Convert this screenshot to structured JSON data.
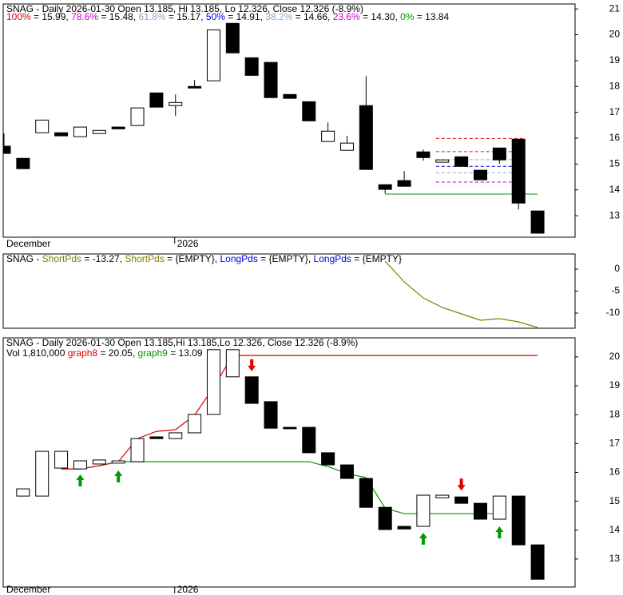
{
  "chart_data": [
    {
      "type": "candlestick",
      "title": "SNAG - Daily 2026-01-30 Open 13.185, Hi 13.185, Lo 12.326, Close 12.326 (-8.9%)",
      "fib_levels": [
        {
          "label": "100%",
          "text": " = 15.99, ",
          "value": 15.99,
          "color": "#e00000"
        },
        {
          "label": "78.6%",
          "text": " = 15.48, ",
          "value": 15.48,
          "color": "#cc00cc"
        },
        {
          "label": "61.8%",
          "text": " = 15.17, ",
          "value": 15.17,
          "color": "#8fa8c8"
        },
        {
          "label": "50%",
          "text": " = 14.91, ",
          "value": 14.91,
          "color": "#0000e0"
        },
        {
          "label": "38.2%",
          "text": " = 14.66, ",
          "value": 14.66,
          "color": "#8fa8c8"
        },
        {
          "label": "23.6%",
          "text": " = 14.30, ",
          "value": 14.3,
          "color": "#cc00cc"
        },
        {
          "label": "0%",
          "text": " = 13.84",
          "value": 13.84,
          "color": "#009900"
        }
      ],
      "categories": [
        "December",
        null,
        null,
        null,
        null,
        null,
        null,
        null,
        null,
        "2026",
        null,
        null,
        null,
        null,
        null,
        null,
        null,
        null,
        null,
        null,
        null,
        null,
        null,
        null,
        null,
        null,
        null,
        null,
        null
      ],
      "open": [
        15.69,
        15.22,
        16.21,
        16.21,
        16.06,
        16.18,
        16.43,
        16.49,
        17.75,
        17.26,
        18.0,
        18.22,
        20.44,
        19.11,
        18.93,
        17.69,
        17.41,
        15.87,
        15.53,
        17.26,
        14.2,
        14.36,
        15.47,
        15.07,
        15.28,
        14.76,
        15.62,
        15.96,
        13.185
      ],
      "high": [
        16.18,
        15.22,
        16.7,
        16.21,
        16.43,
        16.3,
        16.43,
        17.17,
        17.75,
        17.69,
        18.25,
        20.19,
        20.44,
        19.11,
        18.93,
        17.69,
        17.41,
        16.61,
        16.09,
        18.4,
        14.2,
        14.73,
        15.56,
        15.16,
        15.28,
        14.76,
        15.62,
        15.96,
        13.185
      ],
      "low": [
        15.41,
        14.82,
        16.21,
        16.09,
        16.06,
        16.18,
        16.36,
        16.49,
        17.2,
        16.86,
        17.94,
        18.22,
        19.3,
        18.43,
        17.57,
        17.54,
        16.67,
        15.87,
        15.53,
        14.79,
        13.86,
        14.14,
        15.13,
        15.07,
        14.91,
        14.39,
        15.01,
        13.25,
        12.326
      ],
      "close": [
        15.41,
        14.82,
        16.7,
        16.09,
        16.43,
        16.3,
        16.36,
        17.17,
        17.2,
        17.38,
        17.94,
        20.19,
        19.3,
        18.43,
        17.57,
        17.54,
        16.67,
        16.27,
        15.81,
        14.79,
        14.02,
        14.14,
        15.25,
        15.16,
        14.91,
        14.39,
        15.16,
        13.49,
        12.326
      ],
      "ylim": [
        12.17,
        21.19
      ],
      "yticks": [
        13,
        14,
        15,
        16,
        17,
        18,
        19,
        20,
        21
      ]
    },
    {
      "type": "line",
      "title": "SNAG - ",
      "legend": [
        {
          "label": "ShortPds",
          "text": " = -13.27, ",
          "color": "#808000"
        },
        {
          "label": "ShortPds",
          "text": " = {EMPTY}, ",
          "color": "#808000"
        },
        {
          "label": "LongPds",
          "text": " = {EMPTY}, ",
          "color": "#0000e0"
        },
        {
          "label": "LongPds",
          "text": " = {EMPTY}",
          "color": "#0000e0"
        }
      ],
      "categories": [
        null,
        null,
        null,
        null,
        null,
        null,
        null,
        null,
        null,
        null,
        null,
        null,
        null,
        null,
        null,
        null,
        null,
        null,
        null,
        null,
        null,
        null,
        null,
        null,
        null,
        null,
        null,
        null,
        null
      ],
      "series": [
        {
          "color": "#808000",
          "values": [
            null,
            null,
            null,
            null,
            null,
            null,
            null,
            null,
            null,
            null,
            null,
            null,
            null,
            null,
            null,
            null,
            null,
            null,
            null,
            null,
            1.82,
            -2.91,
            -6.55,
            -8.73,
            -10.18,
            -11.64,
            -11.27,
            -12.0,
            -13.27
          ]
        }
      ],
      "ylim": [
        -13.45,
        3.45
      ],
      "yticks": [
        0,
        -5,
        -10
      ]
    },
    {
      "type": "candlestick",
      "title": "SNAG - Daily 2026-01-30 Open 13.185,Hi 13.185,Lo 12.326, Close 12.326 (-8.9%)",
      "volume_label": "Vol 1,810,000 ",
      "categories": [
        "December",
        null,
        null,
        null,
        null,
        null,
        null,
        null,
        null,
        "2026",
        null,
        null,
        null,
        null,
        null,
        null,
        null,
        null,
        null,
        null,
        null,
        null,
        null,
        null,
        null,
        null,
        null,
        null,
        null
      ],
      "open": [
        null,
        15.18,
        15.18,
        16.15,
        16.12,
        16.29,
        16.32,
        16.37,
        17.23,
        17.17,
        17.37,
        18.01,
        19.31,
        19.31,
        18.45,
        17.56,
        17.56,
        16.68,
        16.26,
        15.79,
        14.79,
        14.13,
        14.13,
        15.12,
        15.15,
        14.93,
        14.38,
        15.18,
        13.49
      ],
      "close": [
        null,
        15.43,
        16.73,
        16.73,
        16.4,
        16.43,
        16.4,
        17.17,
        17.17,
        17.37,
        18.01,
        20.25,
        20.25,
        18.39,
        17.53,
        17.51,
        16.68,
        16.26,
        15.79,
        14.79,
        14.02,
        14.04,
        15.21,
        15.21,
        14.93,
        14.38,
        15.18,
        13.49,
        12.3
      ],
      "series": [
        {
          "name": "graph9",
          "text": " = 13.09",
          "color": "#009900",
          "values": [
            null,
            null,
            null,
            16.12,
            16.12,
            16.23,
            16.37,
            16.37,
            16.37,
            16.37,
            16.37,
            16.37,
            16.37,
            16.37,
            16.37,
            16.37,
            16.37,
            16.2,
            15.96,
            15.82,
            14.76,
            14.57,
            14.57,
            14.57,
            14.57,
            14.57,
            14.57,
            null,
            null
          ]
        },
        {
          "name": "graph8",
          "text": " = 20.05, ",
          "color": "#e00000",
          "values": [
            null,
            null,
            null,
            16.12,
            16.12,
            16.23,
            16.37,
            17.17,
            17.42,
            17.48,
            17.98,
            18.95,
            20.05,
            20.05,
            20.05,
            20.05,
            20.05,
            20.05,
            20.05,
            20.05,
            20.05,
            20.05,
            20.05,
            20.05,
            20.05,
            20.05,
            20.05,
            20.05,
            20.05
          ]
        }
      ],
      "signals": [
        {
          "index": 4,
          "value": 15.93,
          "direction": "up",
          "color": "#009900"
        },
        {
          "index": 6,
          "value": 16.07,
          "direction": "up",
          "color": "#009900"
        },
        {
          "index": 13,
          "value": 19.5,
          "direction": "down",
          "color": "#e00000"
        },
        {
          "index": 22,
          "value": 13.91,
          "direction": "up",
          "color": "#009900"
        },
        {
          "index": 24,
          "value": 15.37,
          "direction": "down",
          "color": "#e00000"
        },
        {
          "index": 26,
          "value": 14.13,
          "direction": "up",
          "color": "#009900"
        }
      ],
      "ylim": [
        12.03,
        20.66
      ],
      "yticks": [
        13,
        14,
        15,
        16,
        17,
        18,
        19,
        20
      ]
    }
  ]
}
